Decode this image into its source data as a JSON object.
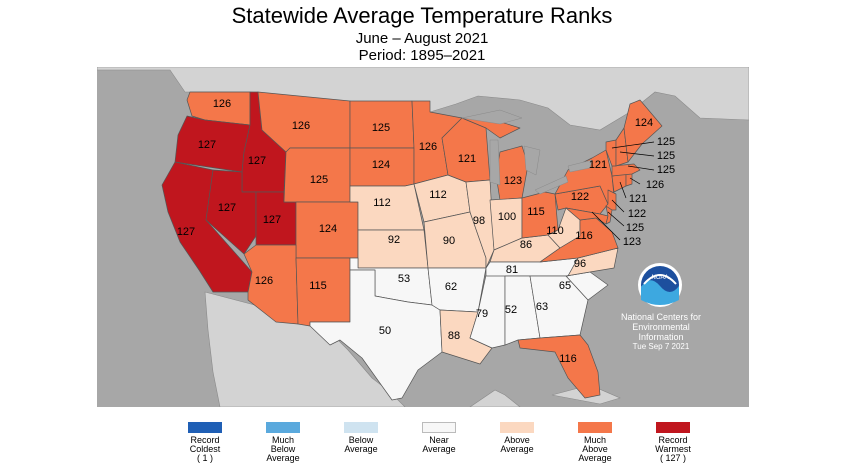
{
  "title": "Statewide Average Temperature Ranks",
  "subtitle1": "June – August 2021",
  "subtitle2": "Period: 1895–2021",
  "colors": {
    "record_warmest": "#c0161e",
    "much_above": "#f4774a",
    "above": "#fbd8c0",
    "near": "#f7f7f7",
    "below": "#cfe3f0",
    "much_below": "#5aa9dd",
    "record_coldest": "#1f5fb5",
    "ocean": "#a7a7a7",
    "land_outside": "#d3d3d3",
    "border": "#555555"
  },
  "states": [
    {
      "id": "WA",
      "rank": "126",
      "cat": "much_above"
    },
    {
      "id": "OR",
      "rank": "127",
      "cat": "record_warmest"
    },
    {
      "id": "CA",
      "rank": "127",
      "cat": "record_warmest"
    },
    {
      "id": "ID",
      "rank": "127",
      "cat": "record_warmest"
    },
    {
      "id": "NV",
      "rank": "127",
      "cat": "record_warmest"
    },
    {
      "id": "UT",
      "rank": "127",
      "cat": "record_warmest"
    },
    {
      "id": "MT",
      "rank": "126",
      "cat": "much_above"
    },
    {
      "id": "WY",
      "rank": "125",
      "cat": "much_above"
    },
    {
      "id": "CO",
      "rank": "124",
      "cat": "much_above"
    },
    {
      "id": "AZ",
      "rank": "126",
      "cat": "much_above"
    },
    {
      "id": "NM",
      "rank": "115",
      "cat": "much_above"
    },
    {
      "id": "ND",
      "rank": "125",
      "cat": "much_above"
    },
    {
      "id": "SD",
      "rank": "124",
      "cat": "much_above"
    },
    {
      "id": "NE",
      "rank": "112",
      "cat": "above"
    },
    {
      "id": "KS",
      "rank": "92",
      "cat": "above"
    },
    {
      "id": "OK",
      "rank": "53",
      "cat": "near"
    },
    {
      "id": "TX",
      "rank": "50",
      "cat": "near"
    },
    {
      "id": "MN",
      "rank": "126",
      "cat": "much_above"
    },
    {
      "id": "IA",
      "rank": "112",
      "cat": "above"
    },
    {
      "id": "MO",
      "rank": "90",
      "cat": "above"
    },
    {
      "id": "AR",
      "rank": "62",
      "cat": "near"
    },
    {
      "id": "LA",
      "rank": "88",
      "cat": "above"
    },
    {
      "id": "WI",
      "rank": "121",
      "cat": "much_above"
    },
    {
      "id": "IL",
      "rank": "98",
      "cat": "above"
    },
    {
      "id": "MS",
      "rank": "79",
      "cat": "near"
    },
    {
      "id": "MI",
      "rank": "123",
      "cat": "much_above"
    },
    {
      "id": "IN",
      "rank": "100",
      "cat": "above"
    },
    {
      "id": "KY",
      "rank": "86",
      "cat": "above"
    },
    {
      "id": "TN",
      "rank": "81",
      "cat": "near"
    },
    {
      "id": "AL",
      "rank": "52",
      "cat": "near"
    },
    {
      "id": "OH",
      "rank": "115",
      "cat": "much_above"
    },
    {
      "id": "WV",
      "rank": "110",
      "cat": "above"
    },
    {
      "id": "GA",
      "rank": "63",
      "cat": "near"
    },
    {
      "id": "FL",
      "rank": "116",
      "cat": "much_above"
    },
    {
      "id": "SC",
      "rank": "65",
      "cat": "near"
    },
    {
      "id": "NC",
      "rank": "96",
      "cat": "above"
    },
    {
      "id": "VA",
      "rank": "116",
      "cat": "much_above"
    },
    {
      "id": "PA",
      "rank": "122",
      "cat": "much_above"
    },
    {
      "id": "NY",
      "rank": "121",
      "cat": "much_above"
    },
    {
      "id": "ME",
      "rank": "124",
      "cat": "much_above"
    },
    {
      "id": "NH",
      "rank": "125",
      "cat": "much_above"
    },
    {
      "id": "VT",
      "rank": "125",
      "cat": "much_above"
    },
    {
      "id": "MA",
      "rank": "125",
      "cat": "much_above"
    },
    {
      "id": "RI",
      "rank": "126",
      "cat": "much_above"
    },
    {
      "id": "CT",
      "rank": "121",
      "cat": "much_above"
    },
    {
      "id": "NJ",
      "rank": "122",
      "cat": "much_above"
    },
    {
      "id": "DE",
      "rank": "125",
      "cat": "much_above"
    },
    {
      "id": "MD",
      "rank": "123",
      "cat": "much_above"
    }
  ],
  "ncei": {
    "line1": "National Centers for",
    "line2": "Environmental",
    "line3": "Information",
    "date": "Tue Sep  7 2021",
    "logo_text": "NOAA"
  },
  "legend": [
    {
      "label": "Record\nColdest\n( 1 )",
      "color": "#1f5fb5"
    },
    {
      "label": "Much\nBelow\nAverage",
      "color": "#5aa9dd"
    },
    {
      "label": "Below\nAverage",
      "color": "#cfe3f0"
    },
    {
      "label": "Near\nAverage",
      "color": "#f7f7f7"
    },
    {
      "label": "Above\nAverage",
      "color": "#fbd8c0"
    },
    {
      "label": "Much\nAbove\nAverage",
      "color": "#f4774a"
    },
    {
      "label": "Record\nWarmest\n( 127 )",
      "color": "#c0161e"
    }
  ]
}
